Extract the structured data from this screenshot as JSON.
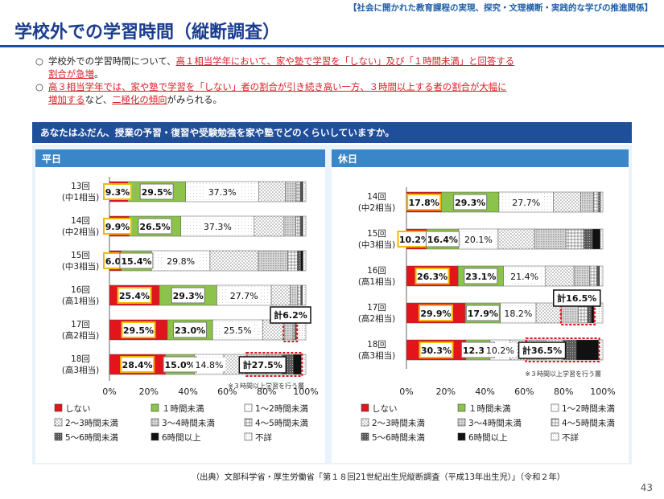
{
  "header": {
    "topline": "【社会に開かれた教育課程の実現、探究・文理横断・実践的な学びの推進関係】",
    "title": "学校外での学習時間（縦断調査）"
  },
  "summary": {
    "mark": "○",
    "line1_a": "学校外での学習時間について、",
    "line1_red": "高１相当学年において、家や塾で学習を「しない」及び「１時間未満」と回答する",
    "line1_red2": "割合が急増",
    "line1_b": "。",
    "line2_red": "高３相当学年では、家や塾で学習を「しない」者の割合が引き続き高い一方、３時間以上する者の割合が大幅に",
    "line2_red2": "増加する",
    "line2_b": "など、",
    "line2_red3": "二極化の傾向",
    "line2_c": "がみられる。"
  },
  "question": "あなたはふだん、授業の予習・復習や受験勉強を家や塾でどのくらいしていますか。",
  "source": "（出典）文部科学省・厚生労働省「第１８回21世紀出生児縦断調査（平成13年出生児）」（令和２年）",
  "page_number": "43",
  "colors": {
    "blue_dark": "#1f4e9a",
    "blue_header": "#3a86c8",
    "red": "#e3141b",
    "green": "#8cc34a",
    "orange": "#f5b800",
    "black": "#111111"
  },
  "chart_data": [
    {
      "type": "bar",
      "orientation": "horizontal",
      "stacked": true,
      "title": "平日",
      "categories": [
        "13回",
        "14回",
        "15回",
        "16回",
        "17回",
        "18回"
      ],
      "category_sublabels": [
        "(中1相当)",
        "(中2相当)",
        "(中3相当)",
        "(高1相当)",
        "(高2相当)",
        "(高3相当)"
      ],
      "xlim": [
        0,
        100
      ],
      "xticks": [
        "0%",
        "20%",
        "40%",
        "60%",
        "80%",
        "100%"
      ],
      "series": [
        {
          "name": "しない",
          "values": [
            9.3,
            9.9,
            6.0,
            25.4,
            29.5,
            28.4
          ]
        },
        {
          "name": "１時間未満",
          "values": [
            29.5,
            26.5,
            15.4,
            29.3,
            23.0,
            15.0
          ]
        },
        {
          "name": "1〜2時間未満",
          "values": [
            37.3,
            37.3,
            29.8,
            27.7,
            25.5,
            14.8
          ]
        },
        {
          "name": "2〜3時間未満",
          "values": [
            13.5,
            15.2,
            24.6,
            9.5,
            11.0,
            12.0
          ]
        },
        {
          "name": "3〜4時間未満",
          "values": [
            5.5,
            6.0,
            15.0,
            4.0,
            4.5,
            10.0
          ]
        },
        {
          "name": "4〜5時間未満",
          "values": [
            2.0,
            2.2,
            4.8,
            1.5,
            1.1,
            7.8
          ]
        },
        {
          "name": "5〜6時間未満",
          "values": [
            0.9,
            0.9,
            1.8,
            0.6,
            0.4,
            5.6
          ]
        },
        {
          "name": "6時間以上",
          "values": [
            0.5,
            0.5,
            1.2,
            0.3,
            0.2,
            4.1
          ]
        },
        {
          "name": "不詳",
          "values": [
            1.5,
            1.5,
            1.4,
            1.7,
            4.8,
            2.3
          ]
        }
      ],
      "data_labels": {
        "しない": [
          "9.3%",
          "9.9%",
          "6.0%",
          "25.4%",
          "29.5%",
          "28.4%"
        ],
        "１時間未満": [
          "29.5%",
          "26.5%",
          "15.4%",
          "29.3%",
          "23.0%",
          "15.0%"
        ],
        "1〜2時間未満": [
          "37.3%",
          "37.3%",
          "29.8%",
          "27.7%",
          "25.5%",
          "14.8%"
        ]
      },
      "callouts": [
        {
          "category": "17回",
          "label": "計6.2%"
        },
        {
          "category": "18回",
          "label": "計27.5%"
        }
      ],
      "note": "※３時間以上学習を行う層"
    },
    {
      "type": "bar",
      "orientation": "horizontal",
      "stacked": true,
      "title": "休日",
      "categories": [
        "14回",
        "15回",
        "16回",
        "17回",
        "18回"
      ],
      "category_sublabels": [
        "(中2相当)",
        "(中3相当)",
        "(高1相当)",
        "(高2相当)",
        "(高3相当)"
      ],
      "xlim": [
        0,
        100
      ],
      "xticks": [
        "0%",
        "20%",
        "40%",
        "60%",
        "80%",
        "100%"
      ],
      "series": [
        {
          "name": "しない",
          "values": [
            17.8,
            10.2,
            26.3,
            29.9,
            30.3
          ]
        },
        {
          "name": "１時間未満",
          "values": [
            29.3,
            16.4,
            23.1,
            17.9,
            12.3
          ]
        },
        {
          "name": "1〜2時間未満",
          "values": [
            27.7,
            20.1,
            21.4,
            18.2,
            10.2
          ]
        },
        {
          "name": "2〜3時間未満",
          "values": [
            14.0,
            18.5,
            14.5,
            13.0,
            8.5
          ]
        },
        {
          "name": "3〜4時間未満",
          "values": [
            6.5,
            16.0,
            8.0,
            8.5,
            9.8
          ]
        },
        {
          "name": "4〜5時間未満",
          "values": [
            2.5,
            9.0,
            3.5,
            4.6,
            8.8
          ]
        },
        {
          "name": "5〜6時間未満",
          "values": [
            0.8,
            4.5,
            1.0,
            2.1,
            6.6
          ]
        },
        {
          "name": "6時間以上",
          "values": [
            0.2,
            4.0,
            0.5,
            1.3,
            11.3
          ]
        },
        {
          "name": "不詳",
          "values": [
            1.2,
            1.3,
            1.7,
            4.5,
            2.2
          ]
        }
      ],
      "data_labels": {
        "しない": [
          "17.8%",
          "10.2%",
          "26.3%",
          "29.9%",
          "30.3%"
        ],
        "１時間未満": [
          "29.3%",
          "16.4%",
          "23.1%",
          "17.9%",
          "12.3%"
        ],
        "1〜2時間未満": [
          "27.7%",
          "20.1%",
          "21.4%",
          "18.2%",
          "10.2%"
        ]
      },
      "callouts": [
        {
          "category": "17回",
          "label": "計16.5%"
        },
        {
          "category": "18回",
          "label": "計36.5%"
        }
      ],
      "note": "※３時間以上学習を行う層"
    }
  ],
  "legend": [
    {
      "name": "しない",
      "pattern": "p0"
    },
    {
      "name": "１時間未満",
      "pattern": "p1"
    },
    {
      "name": "1〜2時間未満",
      "pattern": "p2"
    },
    {
      "name": "2〜3時間未満",
      "pattern": "p3"
    },
    {
      "name": "3〜4時間未満",
      "pattern": "p4"
    },
    {
      "name": "4〜5時間未満",
      "pattern": "p5"
    },
    {
      "name": "5〜6時間未満",
      "pattern": "p6"
    },
    {
      "name": "6時間以上",
      "pattern": "p7"
    },
    {
      "name": "不詳",
      "pattern": "p8"
    }
  ]
}
